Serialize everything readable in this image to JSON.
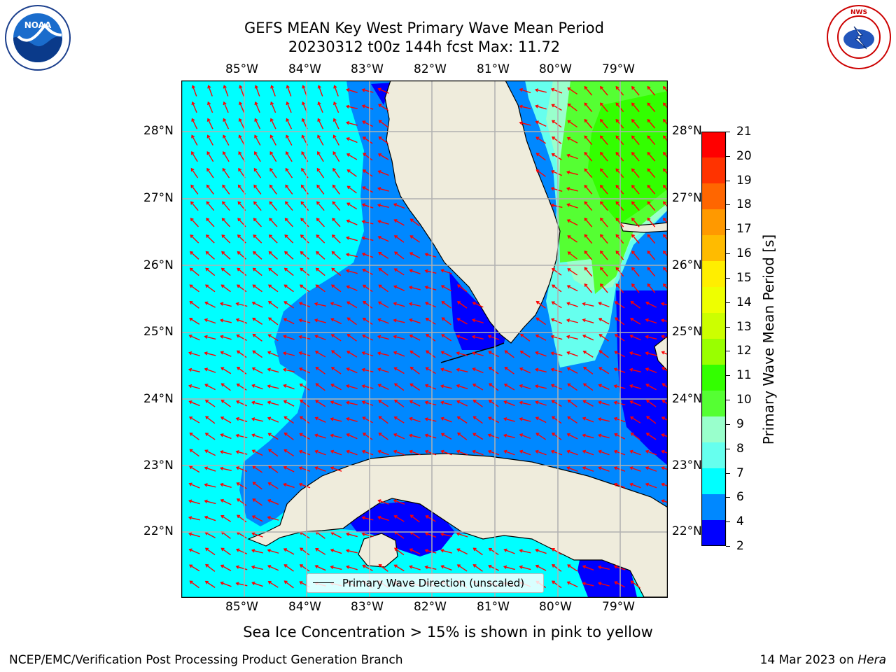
{
  "title": {
    "line1": "GEFS MEAN Key West Primary Wave Mean Period",
    "line2": "20230312 t00z 144h fcst   Max: 11.72"
  },
  "logos": {
    "left": "NOAA",
    "right": "NATIONAL WEATHER SERVICE"
  },
  "map": {
    "longitude_ticks": [
      "85°W",
      "84°W",
      "83°W",
      "82°W",
      "81°W",
      "80°W",
      "79°W"
    ],
    "latitude_ticks": [
      "28°N",
      "27°N",
      "26°N",
      "25°N",
      "24°N",
      "23°N",
      "22°N"
    ],
    "legend_label": "Primary Wave Direction (unscaled)",
    "colors": {
      "land": "#efecdc",
      "grid": "#b0b0b0",
      "arrow": "#ff0000"
    }
  },
  "colorbar": {
    "label": "Primary Wave Mean Period [s]",
    "ticks": [
      "21",
      "20",
      "19",
      "18",
      "17",
      "16",
      "15",
      "14",
      "13",
      "12",
      "11",
      "10",
      "9",
      "8",
      "7",
      "6",
      "4",
      "2"
    ],
    "colors": [
      "#ff0000",
      "#ff3300",
      "#ff6600",
      "#ff9900",
      "#ffbb00",
      "#ffee00",
      "#eeff00",
      "#ccff00",
      "#99ff00",
      "#33ff00",
      "#55ff33",
      "#99ffcc",
      "#66ffee",
      "#00ffff",
      "#0088ff",
      "#0000ff"
    ]
  },
  "footer": {
    "note": "Sea Ice Concentration > 15% is shown in pink to yellow",
    "credit": "NCEP/EMC/Verification Post Processing Product Generation Branch",
    "date_prefix": "14 Mar 2023 on ",
    "date_machine": "Hera"
  }
}
